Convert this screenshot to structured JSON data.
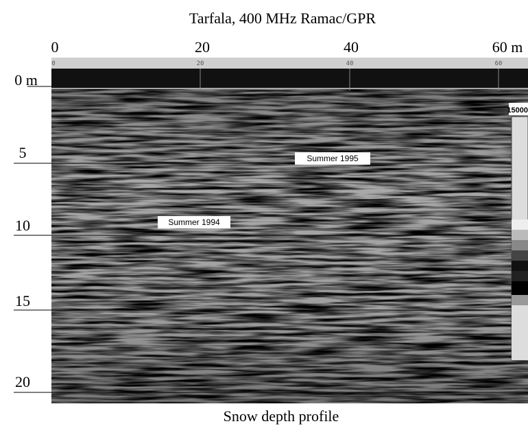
{
  "title": "Tarfala, 400 MHz Ramac/GPR",
  "x_axis": {
    "ticks": [
      "0",
      "20",
      "40",
      "60 m"
    ]
  },
  "ruler": {
    "ticks": [
      "0",
      "20",
      "40",
      "60"
    ]
  },
  "y_axis": {
    "ticks": [
      "0 m",
      "5",
      "10",
      "15",
      "20"
    ]
  },
  "annotations": [
    "Summer 1995",
    "Summer 1994"
  ],
  "colorbar": {
    "label": "15000"
  },
  "caption": "Snow depth profile"
}
